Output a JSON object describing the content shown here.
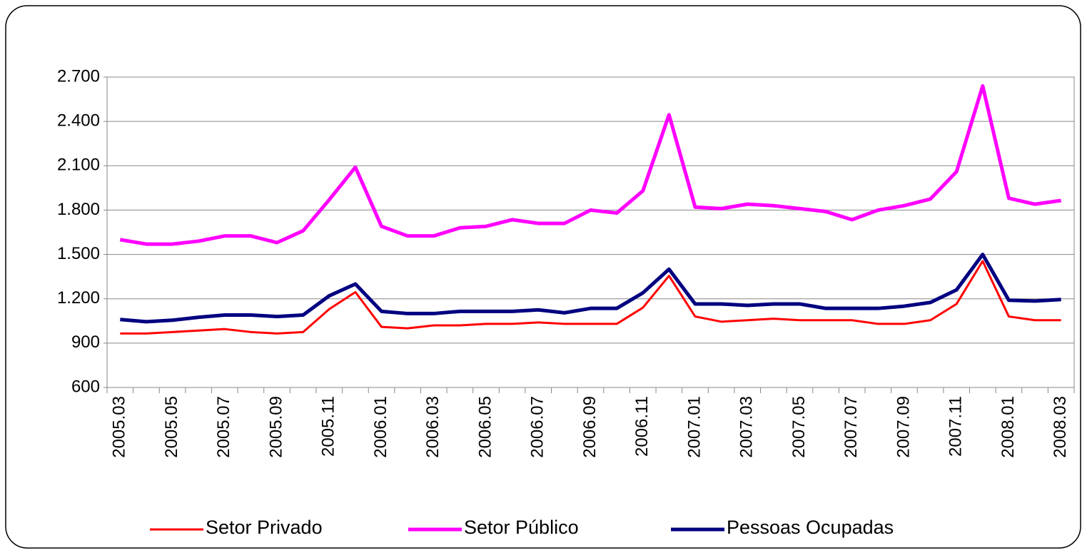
{
  "chart_data": {
    "type": "line",
    "categories": [
      "2005.03",
      null,
      "2005.05",
      null,
      "2005.07",
      null,
      "2005.09",
      null,
      "2005.11",
      null,
      "2006.01",
      null,
      "2006.03",
      null,
      "2006.05",
      null,
      "2006.07",
      null,
      "2006.09",
      null,
      "2006.11",
      null,
      "2007.01",
      null,
      "2007.03",
      null,
      "2007.05",
      null,
      "2007.07",
      null,
      "2007.09",
      null,
      "2007.11",
      null,
      "2008.01",
      null,
      "2008.03"
    ],
    "series": [
      {
        "name": "Setor Privado",
        "color": "#ff0000",
        "values": [
          965,
          965,
          975,
          985,
          995,
          975,
          965,
          975,
          1130,
          1245,
          1010,
          1000,
          1020,
          1020,
          1030,
          1030,
          1040,
          1030,
          1030,
          1030,
          1140,
          1355,
          1080,
          1045,
          1055,
          1065,
          1055,
          1055,
          1055,
          1030,
          1030,
          1055,
          1165,
          1455,
          1080,
          1055,
          1055
        ]
      },
      {
        "name": "Setor Público",
        "color": "#ff00ff",
        "values": [
          1600,
          1570,
          1570,
          1590,
          1625,
          1625,
          1580,
          1660,
          1870,
          2090,
          1690,
          1625,
          1625,
          1680,
          1690,
          1735,
          1710,
          1710,
          1800,
          1780,
          1930,
          2445,
          1820,
          1810,
          1840,
          1830,
          1810,
          1790,
          1735,
          1800,
          1830,
          1875,
          2060,
          2640,
          1880,
          1840,
          1865
        ]
      },
      {
        "name": "Pessoas Ocupadas",
        "color": "#000080",
        "values": [
          1060,
          1045,
          1055,
          1075,
          1090,
          1090,
          1080,
          1090,
          1220,
          1300,
          1115,
          1100,
          1100,
          1115,
          1115,
          1115,
          1125,
          1105,
          1135,
          1135,
          1240,
          1400,
          1165,
          1165,
          1155,
          1165,
          1165,
          1135,
          1135,
          1135,
          1150,
          1175,
          1260,
          1500,
          1190,
          1185,
          1195
        ]
      }
    ],
    "ylim": [
      600,
      2700
    ],
    "yticks": [
      600,
      900,
      {
        "value": 1200,
        "label": "1.200"
      },
      {
        "value": 1500,
        "label": "1.500"
      },
      {
        "value": 1800,
        "label": "1.800"
      },
      {
        "value": 2100,
        "label": "2.100"
      },
      {
        "value": 2400,
        "label": "2.400"
      },
      {
        "value": 2700,
        "label": "2.700"
      }
    ],
    "grid": true,
    "legend": "bottom"
  }
}
